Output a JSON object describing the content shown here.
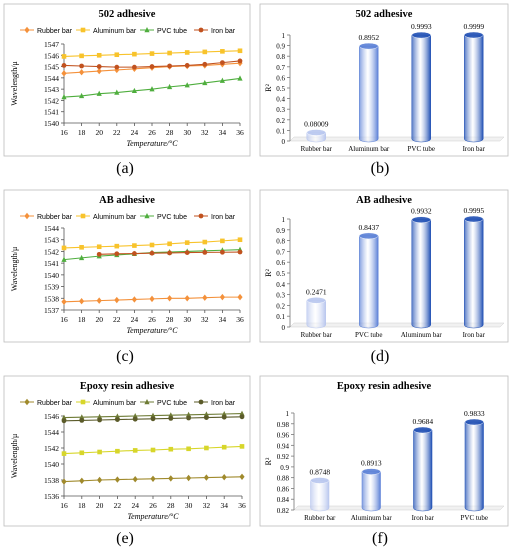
{
  "panel_labels": [
    "(a)",
    "(b)",
    "(c)",
    "(d)",
    "(e)",
    "(f)"
  ],
  "colors": {
    "rubber_a": "#f4913b",
    "aluminum_a": "#f8c32b",
    "pvc_a": "#4fae3e",
    "iron_a": "#c1521f",
    "rubber_e": "#a08a2c",
    "aluminum_e": "#d7d62a",
    "pvc_e": "#6e7b35",
    "iron_e": "#5b5b2a",
    "cyl_light": "#b8c6ee",
    "cyl_mid": "#5a7fd6",
    "cyl_dark": "#1f4fb4"
  },
  "chart_data": [
    {
      "type": "line",
      "title": "502 adhesive",
      "xlabel": "Temperature/°C",
      "ylabel": "Wavelength/μ",
      "x": [
        16,
        18,
        20,
        22,
        24,
        26,
        28,
        30,
        32,
        34,
        36
      ],
      "xlim": [
        16,
        36
      ],
      "ylim": [
        1540,
        1547
      ],
      "yticks": [
        1540,
        1541,
        1542,
        1543,
        1544,
        1545,
        1546,
        1547
      ],
      "legend": "top",
      "series": [
        {
          "name": "Rubber bar",
          "marker": "diamond",
          "color_key": "rubber_a",
          "values": [
            1544.4,
            1544.5,
            1544.6,
            1544.7,
            1544.8,
            1544.9,
            1545.0,
            1545.05,
            1545.1,
            1545.2,
            1545.3
          ]
        },
        {
          "name": "Aluminum bar",
          "marker": "square",
          "color_key": "aluminum_a",
          "values": [
            1545.9,
            1545.95,
            1546.0,
            1546.05,
            1546.1,
            1546.15,
            1546.2,
            1546.25,
            1546.3,
            1546.35,
            1546.4
          ]
        },
        {
          "name": "PVC tube",
          "marker": "triangle",
          "color_key": "pvc_a",
          "values": [
            1542.3,
            1542.4,
            1542.6,
            1542.7,
            1542.85,
            1543.0,
            1543.2,
            1543.35,
            1543.55,
            1543.75,
            1543.95
          ]
        },
        {
          "name": "Iron bar",
          "marker": "circle",
          "color_key": "iron_a",
          "values": [
            1545.1,
            1545.05,
            1545.0,
            1544.95,
            1544.95,
            1545.0,
            1545.05,
            1545.1,
            1545.2,
            1545.35,
            1545.5
          ]
        }
      ]
    },
    {
      "type": "bar",
      "title": "502 adhesive",
      "ylabel": "R²",
      "categories": [
        "Rubber bar",
        "Aluminum bar",
        "PVC tube",
        "Iron bar"
      ],
      "values": [
        0.08009,
        0.8952,
        0.9993,
        0.9999
      ],
      "data_labels": [
        "0.08009",
        "0.8952",
        "0.9993",
        "0.9999"
      ],
      "color_keys": [
        "cyl_light",
        "cyl_mid",
        "cyl_dark",
        "cyl_dark"
      ],
      "ylim": [
        0,
        1
      ],
      "yticks": [
        "0",
        "0.1",
        "0.2",
        "0.3",
        "0.4",
        "0.5",
        "0.6",
        "0.7",
        "0.8",
        "0.9",
        "1"
      ]
    },
    {
      "type": "line",
      "title": "AB adhesive",
      "xlabel": "Temperature/°C",
      "ylabel": "Wavelength/μ",
      "x": [
        16,
        18,
        20,
        22,
        24,
        26,
        28,
        30,
        32,
        34,
        36
      ],
      "xlim": [
        16,
        36
      ],
      "ylim": [
        1537,
        1544
      ],
      "yticks": [
        1537,
        1538,
        1539,
        1540,
        1541,
        1542,
        1543,
        1544
      ],
      "legend": "top",
      "series": [
        {
          "name": "Rubber bar",
          "marker": "diamond",
          "color_key": "rubber_a",
          "values": [
            1537.7,
            1537.75,
            1537.8,
            1537.85,
            1537.9,
            1537.95,
            1538.0,
            1538.0,
            1538.05,
            1538.1,
            1538.1
          ]
        },
        {
          "name": "Aluminum bar",
          "marker": "square",
          "color_key": "aluminum_a",
          "values": [
            1542.3,
            1542.35,
            1542.4,
            1542.45,
            1542.5,
            1542.55,
            1542.65,
            1542.75,
            1542.8,
            1542.9,
            1543.0
          ]
        },
        {
          "name": "PVC tube",
          "marker": "triangle",
          "color_key": "pvc_a",
          "values": [
            1541.3,
            1541.45,
            1541.6,
            1541.7,
            1541.8,
            1541.9,
            1541.95,
            1542.0,
            1542.05,
            1542.1,
            1542.15
          ]
        },
        {
          "name": "Iron bar",
          "marker": "circle",
          "color_key": "iron_a",
          "x": [
            20,
            22,
            24,
            26,
            28,
            30,
            32,
            34,
            36
          ],
          "values": [
            1541.75,
            1541.8,
            1541.82,
            1541.85,
            1541.87,
            1541.9,
            1541.92,
            1541.93,
            1541.95
          ]
        }
      ]
    },
    {
      "type": "bar",
      "title": "AB adhesive",
      "ylabel": "R²",
      "categories": [
        "Rubber bar",
        "PVC tube",
        "Aluminum bar",
        "Iron bar"
      ],
      "values": [
        0.2471,
        0.8437,
        0.9932,
        0.9995
      ],
      "data_labels": [
        "0.2471",
        "0.8437",
        "0.9932",
        "0.9995"
      ],
      "color_keys": [
        "cyl_light",
        "cyl_mid",
        "cyl_dark",
        "cyl_dark"
      ],
      "ylim": [
        0,
        1
      ],
      "yticks": [
        "0",
        "0.1",
        "0.2",
        "0.3",
        "0.4",
        "0.5",
        "0.6",
        "0.7",
        "0.8",
        "0.9",
        "1"
      ]
    },
    {
      "type": "line",
      "title": "Epoxy resin adhesive",
      "xlabel": "Temperature/°C",
      "ylabel": "Wavelength/μ",
      "x": [
        16,
        18,
        20,
        22,
        24,
        26,
        28,
        30,
        32,
        34,
        36
      ],
      "xlim": [
        16,
        36
      ],
      "ylim": [
        1536,
        1546
      ],
      "yticks": [
        1536,
        1538,
        1540,
        1542,
        1544,
        1546
      ],
      "legend": "top",
      "series": [
        {
          "name": "Rubber bar",
          "marker": "diamond",
          "color_key": "rubber_e",
          "values": [
            1537.8,
            1537.9,
            1538.0,
            1538.05,
            1538.1,
            1538.15,
            1538.2,
            1538.25,
            1538.3,
            1538.35,
            1538.4
          ]
        },
        {
          "name": "Aluminum bar",
          "marker": "square",
          "color_key": "aluminum_e",
          "values": [
            1541.3,
            1541.4,
            1541.5,
            1541.6,
            1541.7,
            1541.75,
            1541.85,
            1541.9,
            1542.0,
            1542.1,
            1542.2
          ]
        },
        {
          "name": "PVC tube",
          "marker": "triangle",
          "color_key": "pvc_e",
          "values": [
            1545.8,
            1545.85,
            1545.9,
            1545.95,
            1546.0,
            1546.05,
            1546.1,
            1546.15,
            1546.2,
            1546.25,
            1546.3
          ]
        },
        {
          "name": "Iron bar",
          "marker": "circle",
          "color_key": "iron_e",
          "values": [
            1545.4,
            1545.45,
            1545.5,
            1545.55,
            1545.6,
            1545.65,
            1545.7,
            1545.75,
            1545.8,
            1545.85,
            1545.9
          ]
        }
      ]
    },
    {
      "type": "bar",
      "title": "Epoxy resin adhesive",
      "ylabel": "R²",
      "categories": [
        "Rubber bar",
        "Aluminum bar",
        "Iron bar",
        "PVC tube"
      ],
      "values": [
        0.8748,
        0.8913,
        0.9684,
        0.9833
      ],
      "data_labels": [
        "0.8748",
        "0.8913",
        "0.9684",
        "0.9833"
      ],
      "color_keys": [
        "cyl_light",
        "cyl_mid",
        "cyl_dark",
        "cyl_dark"
      ],
      "ylim": [
        0.82,
        1
      ],
      "yticks": [
        "0.82",
        "0.84",
        "0.86",
        "0.88",
        "0.9",
        "0.92",
        "0.94",
        "0.96",
        "0.98",
        "1"
      ]
    }
  ]
}
